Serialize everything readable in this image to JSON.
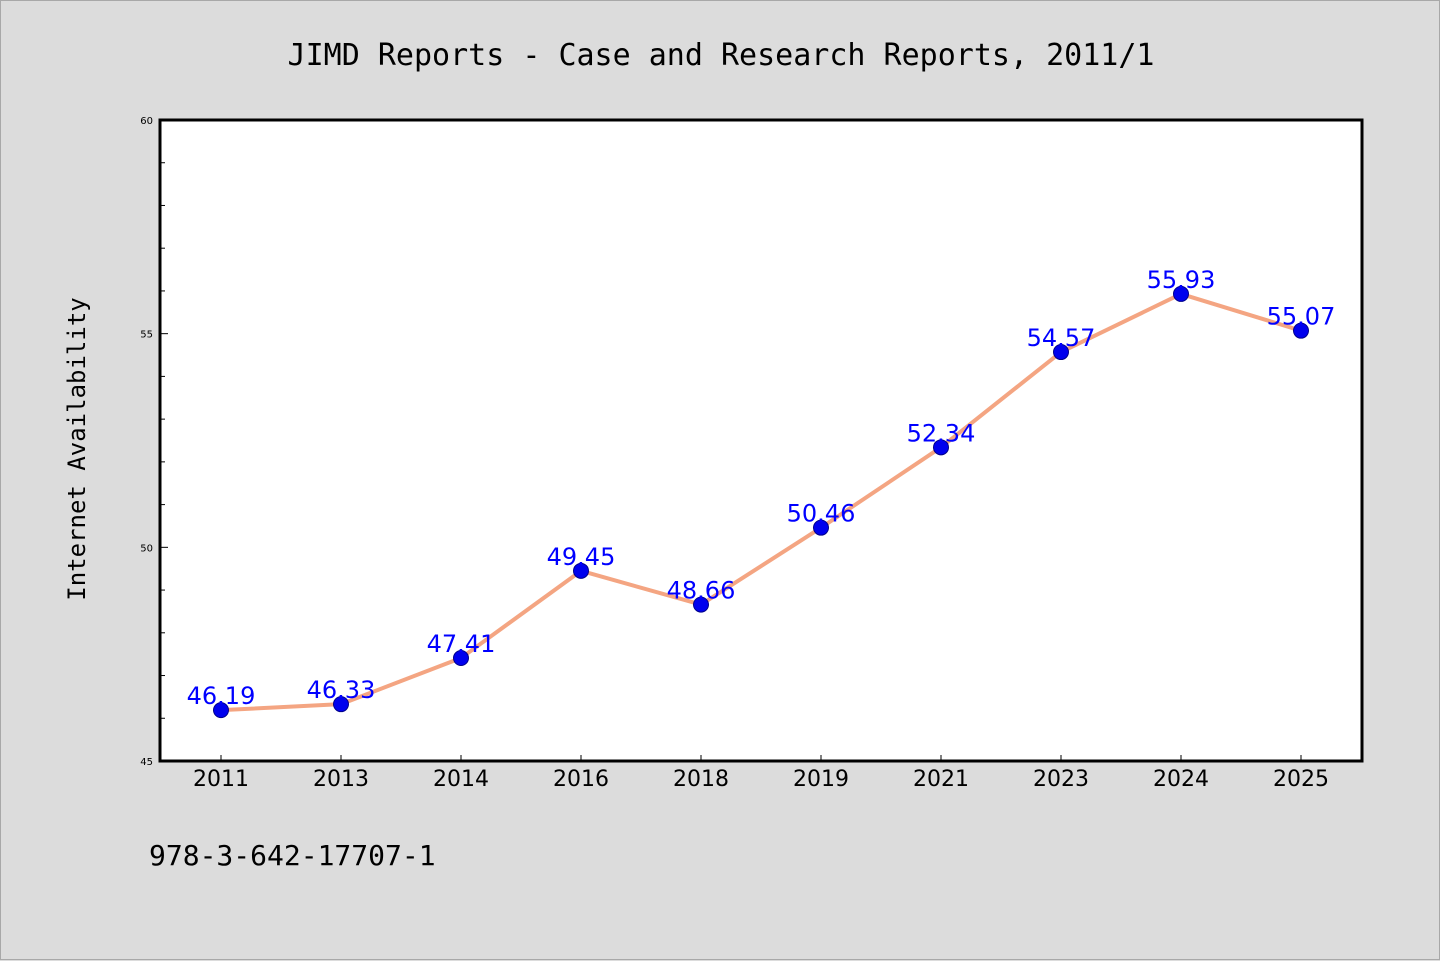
{
  "chart_data": {
    "type": "line",
    "title": "JIMD Reports - Case and Research Reports, 2011/1",
    "ylabel": "Internet Availability",
    "xlabel": "",
    "categories": [
      "2011",
      "2013",
      "2014",
      "2016",
      "2018",
      "2019",
      "2021",
      "2023",
      "2024",
      "2025"
    ],
    "series": [
      {
        "values": [
          46.19,
          46.33,
          47.41,
          49.45,
          48.66,
          50.46,
          52.34,
          54.57,
          55.93,
          55.07
        ],
        "labels": [
          "46.19",
          "46.33",
          "47.41",
          "49.45",
          "48.66",
          "50.46",
          "52.34",
          "54.57",
          "55.93",
          "55.07"
        ],
        "line_color": "#f4a582",
        "marker_color": "#0000ee",
        "label_color": "#0000ff"
      }
    ],
    "ylim": [
      45,
      60
    ],
    "yticks": [
      "45",
      "50",
      "55",
      "60"
    ],
    "grid": false,
    "footer_text": "978-3-642-17707-1",
    "colors": {
      "background": "#dcdcdc",
      "plot_background": "#ffffff",
      "axis": "#000000"
    }
  }
}
